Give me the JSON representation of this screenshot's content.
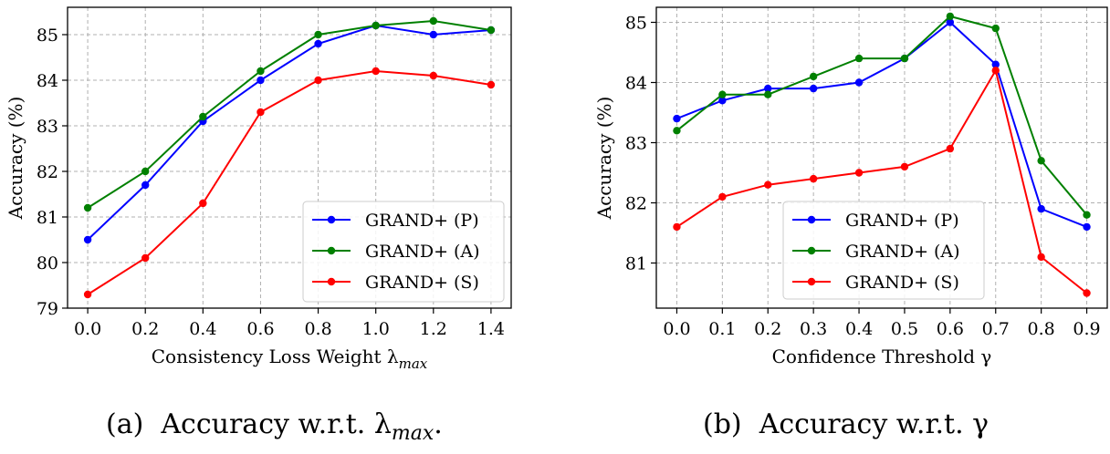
{
  "colors": {
    "p": "#0000ff",
    "a": "#008000",
    "s": "#ff0000",
    "grid": "#b0b0b0"
  },
  "chart_data": [
    {
      "type": "line",
      "x": [
        0.0,
        0.2,
        0.4,
        0.6,
        0.8,
        1.0,
        1.2,
        1.4
      ],
      "x_tick_labels": [
        "0.0",
        "0.2",
        "0.4",
        "0.6",
        "0.8",
        "1.0",
        "1.2",
        "1.4"
      ],
      "xlim": [
        -0.07,
        1.47
      ],
      "ylim": [
        79,
        85.6
      ],
      "y_ticks": [
        79,
        80,
        81,
        82,
        83,
        84,
        85
      ],
      "xlabel": "Consistency Loss Weight λ",
      "xlabel_sub": "max",
      "ylabel": "Accuracy (%)",
      "grid": true,
      "legend_position": "lower-right",
      "series": [
        {
          "name": "GRAND+ (P)",
          "color_key": "p",
          "values": [
            80.5,
            81.7,
            83.1,
            84.0,
            84.8,
            85.2,
            85.0,
            85.1
          ]
        },
        {
          "name": "GRAND+ (A)",
          "color_key": "a",
          "values": [
            81.2,
            82.0,
            83.2,
            84.2,
            85.0,
            85.2,
            85.3,
            85.1
          ]
        },
        {
          "name": "GRAND+ (S)",
          "color_key": "s",
          "values": [
            79.3,
            80.1,
            81.3,
            83.3,
            84.0,
            84.2,
            84.1,
            83.9
          ]
        }
      ],
      "caption_label": "(a)",
      "caption_text": "Accuracy w.r.t. λ",
      "caption_sub": "max",
      "caption_end": "."
    },
    {
      "type": "line",
      "x": [
        0.0,
        0.1,
        0.2,
        0.3,
        0.4,
        0.5,
        0.6,
        0.7,
        0.8,
        0.9
      ],
      "x_tick_labels": [
        "0.0",
        "0.1",
        "0.2",
        "0.3",
        "0.4",
        "0.5",
        "0.6",
        "0.7",
        "0.8",
        "0.9"
      ],
      "xlim": [
        -0.045,
        0.945
      ],
      "ylim": [
        80.25,
        85.25
      ],
      "y_ticks": [
        81,
        82,
        83,
        84,
        85
      ],
      "xlabel": "Confidence Threshold γ",
      "ylabel": "Accuracy (%)",
      "grid": true,
      "legend_position": "lower-center",
      "series": [
        {
          "name": "GRAND+ (P)",
          "color_key": "p",
          "values": [
            83.4,
            83.7,
            83.9,
            83.9,
            84.0,
            84.4,
            85.0,
            84.3,
            81.9,
            81.6
          ]
        },
        {
          "name": "GRAND+ (A)",
          "color_key": "a",
          "values": [
            83.2,
            83.8,
            83.8,
            84.1,
            84.4,
            84.4,
            85.1,
            84.9,
            82.7,
            81.8
          ]
        },
        {
          "name": "GRAND+ (S)",
          "color_key": "s",
          "values": [
            81.6,
            82.1,
            82.3,
            82.4,
            82.5,
            82.6,
            82.9,
            84.2,
            81.1,
            80.5
          ]
        }
      ],
      "caption_label": "(b)",
      "caption_text": "Accuracy w.r.t. γ",
      "caption_end": ""
    }
  ]
}
